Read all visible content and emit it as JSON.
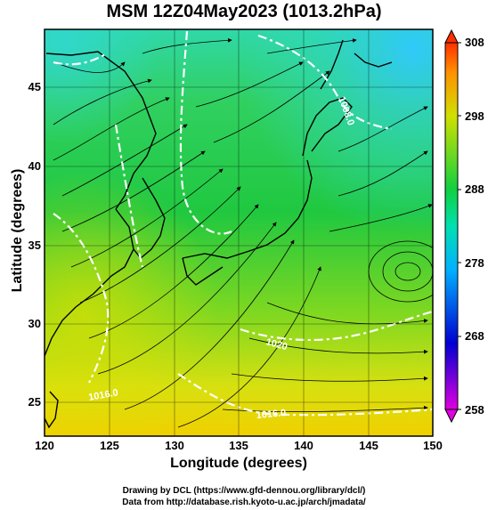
{
  "title": "MSM 12Z04May2023 (1013.2hPa)",
  "x_axis": {
    "label": "Longitude (degrees)",
    "ticks": [
      "120",
      "125",
      "130",
      "135",
      "140",
      "145",
      "150"
    ],
    "range": [
      120,
      150
    ]
  },
  "y_axis": {
    "label": "Latitude  (degrees)",
    "ticks": [
      "25",
      "30",
      "35",
      "40",
      "45"
    ],
    "range": [
      22.5,
      48
    ]
  },
  "colorbar": {
    "ticks": [
      "308",
      "298",
      "288",
      "278",
      "268",
      "258"
    ],
    "range": [
      258,
      308
    ],
    "colors": [
      "#e000e0",
      "#0000d0",
      "#00a0ff",
      "#00e0c0",
      "#10d040",
      "#c0e000",
      "#ffc000",
      "#ff4000"
    ]
  },
  "isobar_labels": [
    "1008.0",
    "1016.0",
    "1020",
    "1016.0"
  ],
  "credits": {
    "line1": "Drawing by DCL (https://www.gfd-dennou.org/library/dcl/)",
    "line2": "Data from http://database.rish.kyoto-u.ac.jp/arch/jmadata/"
  }
}
